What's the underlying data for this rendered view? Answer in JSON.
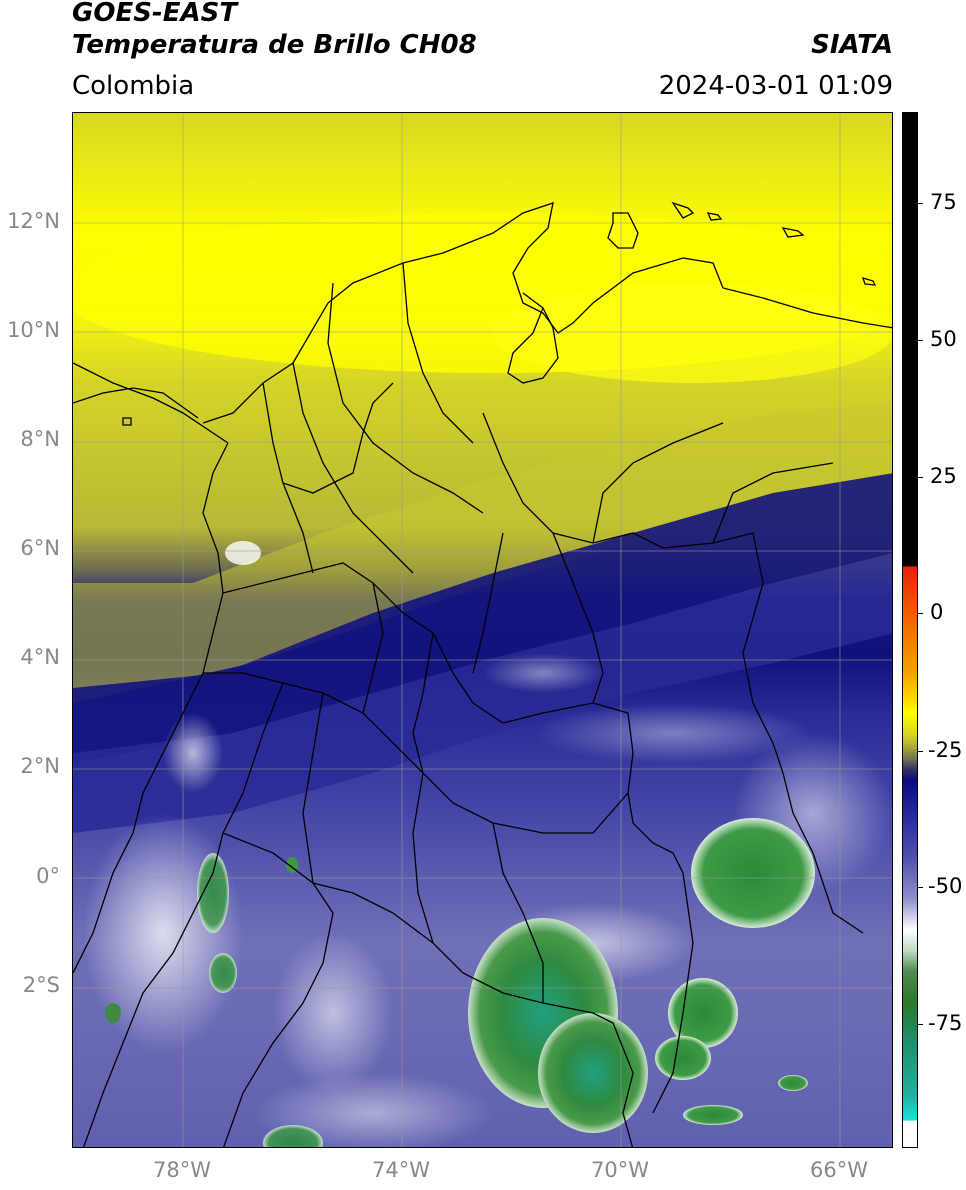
{
  "header": {
    "line1": "GOES-EAST",
    "line2": "Temperatura de Brillo CH08",
    "org": "SIATA",
    "region": "Colombia",
    "datetime": "2024-03-01 01:09"
  },
  "map": {
    "lat_labels": [
      "12°N",
      "10°N",
      "8°N",
      "6°N",
      "4°N",
      "2°N",
      "0°",
      "2°S"
    ],
    "lon_labels": [
      "78°W",
      "74°W",
      "70°W",
      "66°W"
    ],
    "lon_range": [
      -80,
      -65
    ],
    "lat_range": [
      -5,
      14
    ],
    "grid": true
  },
  "colorbar": {
    "tick_labels": [
      "75",
      "50",
      "25",
      "0",
      "-25",
      "-50",
      "-75"
    ],
    "tick_values": [
      75,
      50,
      25,
      0,
      -25,
      -50,
      -75
    ],
    "range": [
      -100,
      90
    ],
    "colors": {
      "black": "#000000",
      "red": "#e8200a",
      "orange": "#f59a00",
      "yellow": "#ffff00",
      "olive": "#c8c820",
      "dark_navy": "#0a0a80",
      "blue": "#3a3aa0",
      "lavender": "#c8c8e8",
      "white": "#ffffff",
      "green": "#3a8a3a",
      "teal": "#20a090",
      "cyan": "#20e0e0"
    }
  }
}
